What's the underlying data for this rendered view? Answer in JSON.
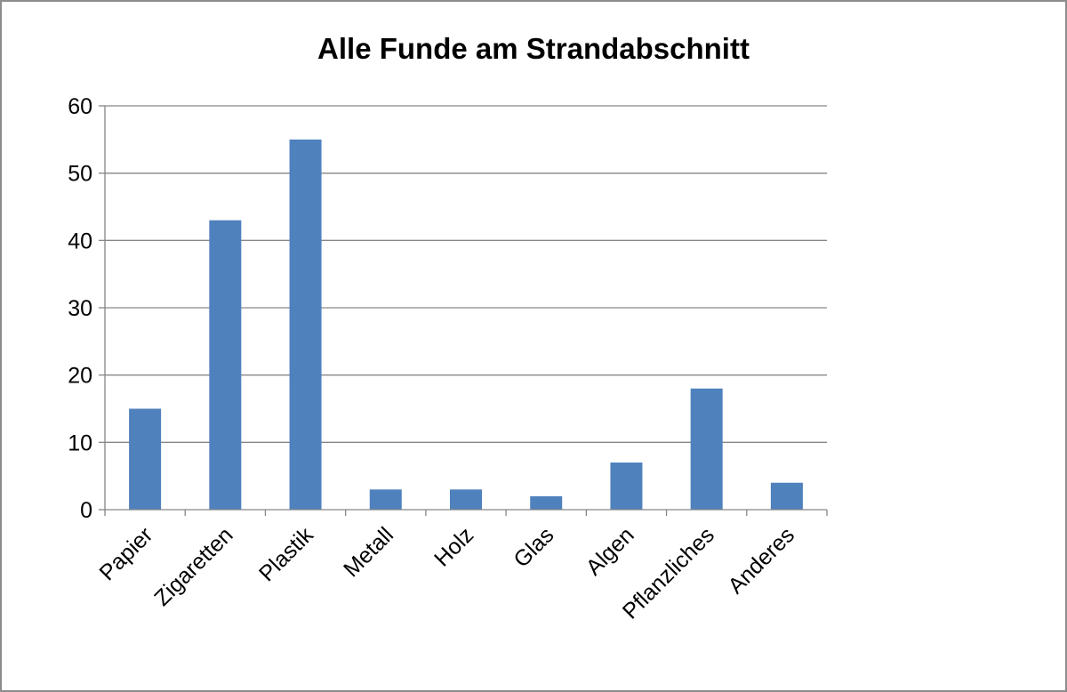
{
  "chart_data": {
    "type": "bar",
    "title": "Alle Funde am Strandabschnitt",
    "xlabel": "",
    "ylabel": "",
    "categories": [
      "Papier",
      "Zigaretten",
      "Plastik",
      "Metall",
      "Holz",
      "Glas",
      "Algen",
      "Pflanzliches",
      "Anderes"
    ],
    "values": [
      15,
      43,
      55,
      3,
      3,
      2,
      7,
      18,
      4
    ],
    "ylim": [
      0,
      60
    ],
    "yticks": [
      "0",
      "10",
      "20",
      "30",
      "40",
      "50",
      "60"
    ],
    "grid": true,
    "legend": "none",
    "bar_color": "#4f81bd",
    "grid_color": "#868686"
  }
}
